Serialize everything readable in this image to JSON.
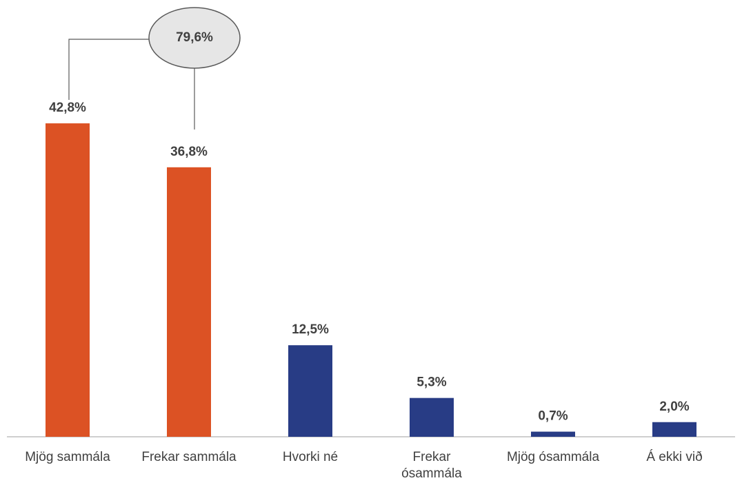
{
  "chart_data": {
    "type": "bar",
    "categories": [
      "Mjög sammála",
      "Frekar sammála",
      "Hvorki né",
      "Frekar ósammála",
      "Mjög ósammála",
      "Á ekki við"
    ],
    "values": [
      42.8,
      36.8,
      12.5,
      5.3,
      0.7,
      2.0
    ],
    "value_labels": [
      "42,8%",
      "36,8%",
      "12,5%",
      "5,3%",
      "0,7%",
      "2,0%"
    ],
    "colors": [
      "#dc5224",
      "#dc5224",
      "#283c85",
      "#283c85",
      "#283c85",
      "#283c85"
    ],
    "annotation": "79,6%"
  }
}
